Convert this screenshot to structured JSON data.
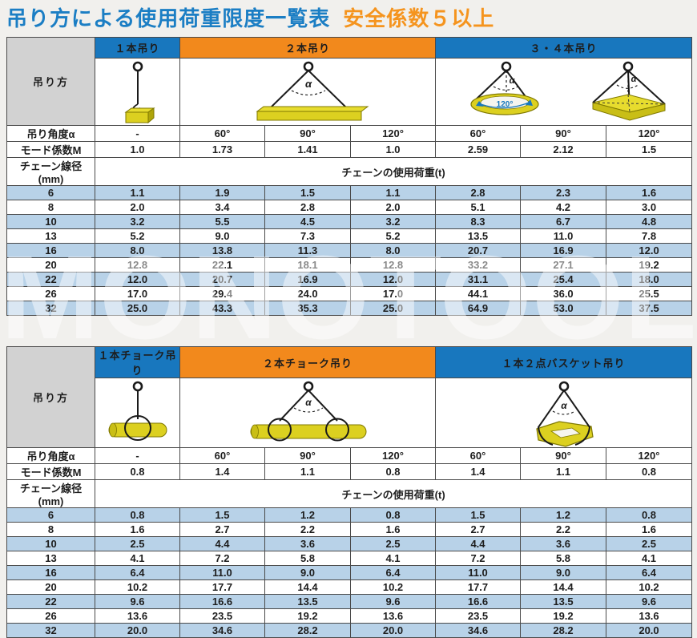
{
  "page": {
    "title_main": "吊り方による使用荷重限度一覧表",
    "title_sub": "安全係数５以上",
    "watermark": "MONOTOOL"
  },
  "colors": {
    "header_blue": "#1877BE",
    "header_orange": "#F2891C",
    "row_alt_blue": "#B8D2E8",
    "corner_gray": "#D2D2D2",
    "title_blue": "#1B7EC4",
    "title_orange": "#F5941E",
    "load_yellow": "#DCD020",
    "plan_angle_blue": "#1878BE"
  },
  "labels": {
    "method": "吊り方",
    "angle": "吊り角度α",
    "mode": "モード係数M",
    "diameter": "チェーン線径(mm)",
    "load": "チェーンの使用荷重(t)"
  },
  "diagram": {
    "alpha": "α",
    "plan_angle": "120°"
  },
  "table1": {
    "groups": [
      {
        "label": "１本吊り",
        "span": 1,
        "color": "blue"
      },
      {
        "label": "２本吊り",
        "span": 3,
        "color": "orange"
      },
      {
        "label": "３・４本吊り",
        "span": 3,
        "color": "blue"
      }
    ],
    "angles": [
      "-",
      "60°",
      "90°",
      "120°",
      "60°",
      "90°",
      "120°"
    ],
    "modes": [
      "1.0",
      "1.73",
      "1.41",
      "1.0",
      "2.59",
      "2.12",
      "1.5"
    ],
    "rows": [
      {
        "d": "6",
        "v": [
          "1.1",
          "1.9",
          "1.5",
          "1.1",
          "2.8",
          "2.3",
          "1.6"
        ]
      },
      {
        "d": "8",
        "v": [
          "2.0",
          "3.4",
          "2.8",
          "2.0",
          "5.1",
          "4.2",
          "3.0"
        ]
      },
      {
        "d": "10",
        "v": [
          "3.2",
          "5.5",
          "4.5",
          "3.2",
          "8.3",
          "6.7",
          "4.8"
        ]
      },
      {
        "d": "13",
        "v": [
          "5.2",
          "9.0",
          "7.3",
          "5.2",
          "13.5",
          "11.0",
          "7.8"
        ]
      },
      {
        "d": "16",
        "v": [
          "8.0",
          "13.8",
          "11.3",
          "8.0",
          "20.7",
          "16.9",
          "12.0"
        ]
      },
      {
        "d": "20",
        "v": [
          "12.8",
          "22.1",
          "18.1",
          "12.8",
          "33.2",
          "27.1",
          "19.2"
        ]
      },
      {
        "d": "22",
        "v": [
          "12.0",
          "20.7",
          "16.9",
          "12.0",
          "31.1",
          "25.4",
          "18.0"
        ]
      },
      {
        "d": "26",
        "v": [
          "17.0",
          "29.4",
          "24.0",
          "17.0",
          "44.1",
          "36.0",
          "25.5"
        ]
      },
      {
        "d": "32",
        "v": [
          "25.0",
          "43.3",
          "35.3",
          "25.0",
          "64.9",
          "53.0",
          "37.5"
        ]
      }
    ]
  },
  "table2": {
    "groups": [
      {
        "label": "１本チョーク吊り",
        "span": 1,
        "color": "blue"
      },
      {
        "label": "２本チョーク吊り",
        "span": 3,
        "color": "orange"
      },
      {
        "label": "１本２点バスケット吊り",
        "span": 3,
        "color": "blue"
      }
    ],
    "angles": [
      "-",
      "60°",
      "90°",
      "120°",
      "60°",
      "90°",
      "120°"
    ],
    "modes": [
      "0.8",
      "1.4",
      "1.1",
      "0.8",
      "1.4",
      "1.1",
      "0.8"
    ],
    "rows": [
      {
        "d": "6",
        "v": [
          "0.8",
          "1.5",
          "1.2",
          "0.8",
          "1.5",
          "1.2",
          "0.8"
        ]
      },
      {
        "d": "8",
        "v": [
          "1.6",
          "2.7",
          "2.2",
          "1.6",
          "2.7",
          "2.2",
          "1.6"
        ]
      },
      {
        "d": "10",
        "v": [
          "2.5",
          "4.4",
          "3.6",
          "2.5",
          "4.4",
          "3.6",
          "2.5"
        ]
      },
      {
        "d": "13",
        "v": [
          "4.1",
          "7.2",
          "5.8",
          "4.1",
          "7.2",
          "5.8",
          "4.1"
        ]
      },
      {
        "d": "16",
        "v": [
          "6.4",
          "11.0",
          "9.0",
          "6.4",
          "11.0",
          "9.0",
          "6.4"
        ]
      },
      {
        "d": "20",
        "v": [
          "10.2",
          "17.7",
          "14.4",
          "10.2",
          "17.7",
          "14.4",
          "10.2"
        ]
      },
      {
        "d": "22",
        "v": [
          "9.6",
          "16.6",
          "13.5",
          "9.6",
          "16.6",
          "13.5",
          "9.6"
        ]
      },
      {
        "d": "26",
        "v": [
          "13.6",
          "23.5",
          "19.2",
          "13.6",
          "23.5",
          "19.2",
          "13.6"
        ]
      },
      {
        "d": "32",
        "v": [
          "20.0",
          "34.6",
          "28.2",
          "20.0",
          "34.6",
          "28.2",
          "20.0"
        ]
      }
    ]
  }
}
